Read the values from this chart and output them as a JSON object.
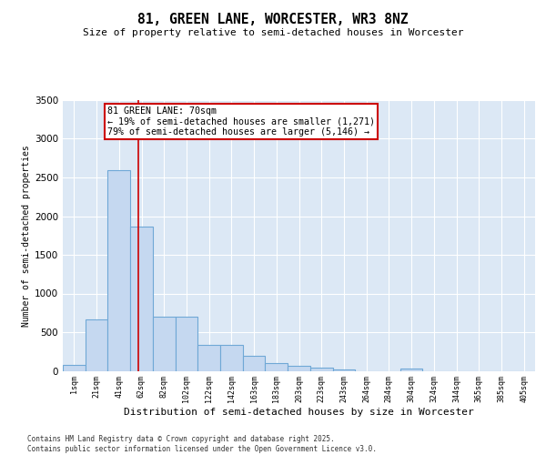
{
  "title1": "81, GREEN LANE, WORCESTER, WR3 8NZ",
  "title2": "Size of property relative to semi-detached houses in Worcester",
  "xlabel": "Distribution of semi-detached houses by size in Worcester",
  "ylabel": "Number of semi-detached properties",
  "bin_labels": [
    "1sqm",
    "21sqm",
    "41sqm",
    "62sqm",
    "82sqm",
    "102sqm",
    "122sqm",
    "142sqm",
    "163sqm",
    "183sqm",
    "203sqm",
    "223sqm",
    "243sqm",
    "264sqm",
    "284sqm",
    "304sqm",
    "324sqm",
    "344sqm",
    "365sqm",
    "385sqm",
    "405sqm"
  ],
  "bar_heights": [
    80,
    660,
    2590,
    1860,
    700,
    700,
    340,
    340,
    190,
    95,
    65,
    45,
    15,
    0,
    0,
    25,
    0,
    0,
    0,
    0,
    0
  ],
  "bar_color": "#c5d8f0",
  "bar_edge_color": "#6fa8d6",
  "red_line_x": 2.85,
  "annotation_line1": "81 GREEN LANE: 70sqm",
  "annotation_line2": "← 19% of semi-detached houses are smaller (1,271)",
  "annotation_line3": "79% of semi-detached houses are larger (5,146) →",
  "annotation_box_color": "white",
  "annotation_box_edge": "#cc0000",
  "ylim": [
    0,
    3500
  ],
  "yticks": [
    0,
    500,
    1000,
    1500,
    2000,
    2500,
    3000,
    3500
  ],
  "plot_bg_color": "#dce8f5",
  "grid_color": "white",
  "footer_text": "Contains HM Land Registry data © Crown copyright and database right 2025.\nContains public sector information licensed under the Open Government Licence v3.0.",
  "red_line_color": "#cc0000",
  "fig_width": 6.0,
  "fig_height": 5.0,
  "dpi": 100
}
